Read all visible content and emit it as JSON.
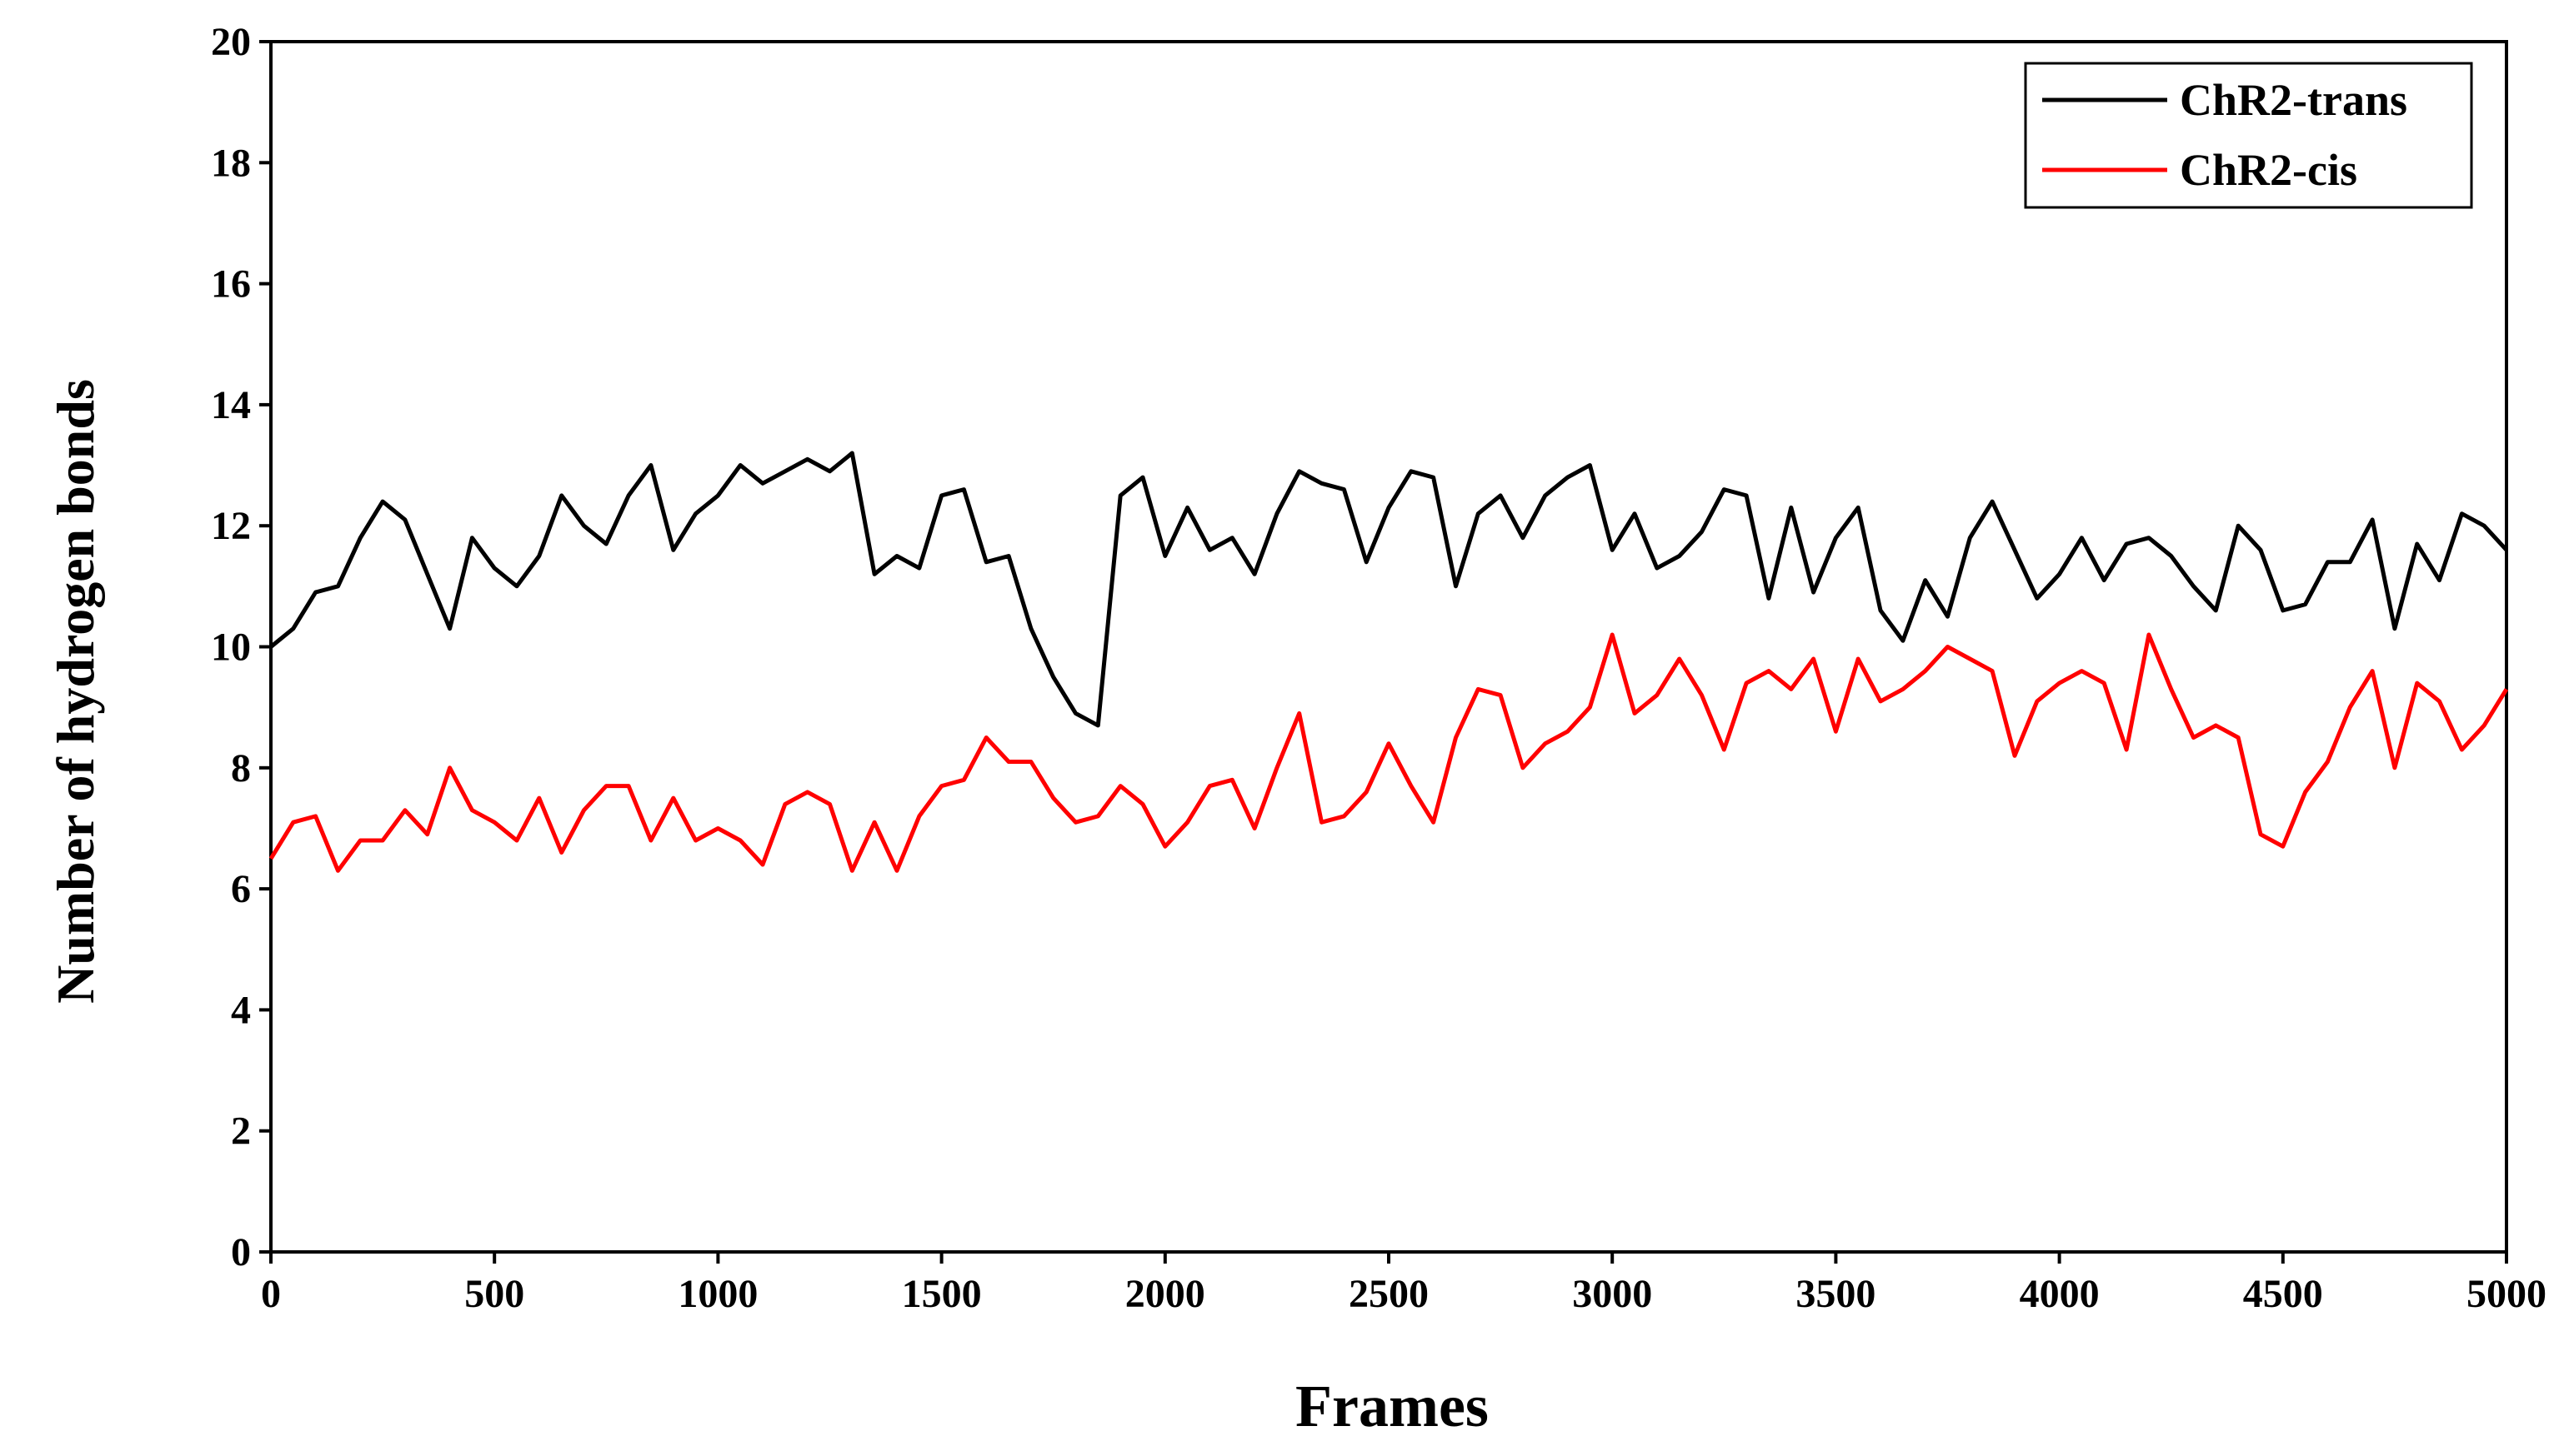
{
  "chart_data": {
    "type": "line",
    "x_label": "Frames",
    "y_label": "Number of hydrogen bonds",
    "x": [
      0,
      50,
      100,
      150,
      200,
      250,
      300,
      350,
      400,
      450,
      500,
      550,
      600,
      650,
      700,
      750,
      800,
      850,
      900,
      950,
      1000,
      1050,
      1100,
      1150,
      1200,
      1250,
      1300,
      1350,
      1400,
      1450,
      1500,
      1550,
      1600,
      1650,
      1700,
      1750,
      1800,
      1850,
      1900,
      1950,
      2000,
      2050,
      2100,
      2150,
      2200,
      2250,
      2300,
      2350,
      2400,
      2450,
      2500,
      2550,
      2600,
      2650,
      2700,
      2750,
      2800,
      2850,
      2900,
      2950,
      3000,
      3050,
      3100,
      3150,
      3200,
      3250,
      3300,
      3350,
      3400,
      3450,
      3500,
      3550,
      3600,
      3650,
      3700,
      3750,
      3800,
      3850,
      3900,
      3950,
      4000,
      4050,
      4100,
      4150,
      4200,
      4250,
      4300,
      4350,
      4400,
      4450,
      4500,
      4550,
      4600,
      4650,
      4700,
      4750,
      4800,
      4850,
      4900,
      4950,
      5000
    ],
    "series": [
      {
        "name": "ChR2-trans",
        "color": "#000000",
        "values": [
          10,
          10.3,
          10.9,
          11,
          11.8,
          12.4,
          12.1,
          11.2,
          10.3,
          11.8,
          11.3,
          11,
          11.5,
          12.5,
          12,
          11.7,
          12.5,
          13,
          11.6,
          12.2,
          12.5,
          13,
          12.7,
          12.9,
          13.1,
          12.9,
          13.2,
          11.2,
          11.5,
          11.3,
          12.5,
          12.6,
          11.4,
          11.5,
          10.3,
          9.5,
          8.9,
          8.7,
          12.5,
          12.8,
          11.5,
          12.3,
          11.6,
          11.8,
          11.2,
          12.2,
          12.9,
          12.7,
          12.6,
          11.4,
          12.3,
          12.9,
          12.8,
          11,
          12.2,
          12.5,
          11.8,
          12.5,
          12.8,
          13,
          11.6,
          12.2,
          11.3,
          11.5,
          11.9,
          12.6,
          12.5,
          10.8,
          12.3,
          10.9,
          11.8,
          12.3,
          10.6,
          10.1,
          11.1,
          10.5,
          11.8,
          12.4,
          11.6,
          10.8,
          11.2,
          11.8,
          11.1,
          11.7,
          11.8,
          11.5,
          11,
          10.6,
          12,
          11.6,
          10.6,
          10.7,
          11.4,
          11.4,
          12.1,
          10.3,
          11.7,
          11.1,
          12.2,
          12,
          11.6
        ]
      },
      {
        "name": "ChR2-cis",
        "color": "#ff0000",
        "values": [
          6.5,
          7.1,
          7.2,
          6.3,
          6.8,
          6.8,
          7.3,
          6.9,
          8,
          7.3,
          7.1,
          6.8,
          7.5,
          6.6,
          7.3,
          7.7,
          7.7,
          6.8,
          7.5,
          6.8,
          7,
          6.8,
          6.4,
          7.4,
          7.6,
          7.4,
          6.3,
          7.1,
          6.3,
          7.2,
          7.7,
          7.8,
          8.5,
          8.1,
          8.1,
          7.5,
          7.1,
          7.2,
          7.7,
          7.4,
          6.7,
          7.1,
          7.7,
          7.8,
          7,
          8,
          8.9,
          7.1,
          7.2,
          7.6,
          8.4,
          7.7,
          7.1,
          8.5,
          9.3,
          9.2,
          8,
          8.4,
          8.6,
          9,
          10.2,
          8.9,
          9.2,
          9.8,
          9.2,
          8.3,
          9.4,
          9.6,
          9.3,
          9.8,
          8.6,
          9.8,
          9.1,
          9.3,
          9.6,
          10,
          9.8,
          9.6,
          8.2,
          9.1,
          9.4,
          9.6,
          9.4,
          8.3,
          10.2,
          9.3,
          8.5,
          8.7,
          8.5,
          6.9,
          6.7,
          7.6,
          8.1,
          9,
          9.6,
          8,
          9.4,
          9.1,
          8.3,
          8.7,
          9.3
        ]
      }
    ],
    "xlim": [
      0,
      5000
    ],
    "xticks": [
      0,
      500,
      1000,
      1500,
      2000,
      2500,
      3000,
      3500,
      4000,
      4500,
      5000
    ],
    "ylim": [
      0,
      20
    ],
    "yticks": [
      0,
      2,
      4,
      6,
      8,
      10,
      12,
      14,
      16,
      18,
      20
    ],
    "legend": "upper right"
  }
}
